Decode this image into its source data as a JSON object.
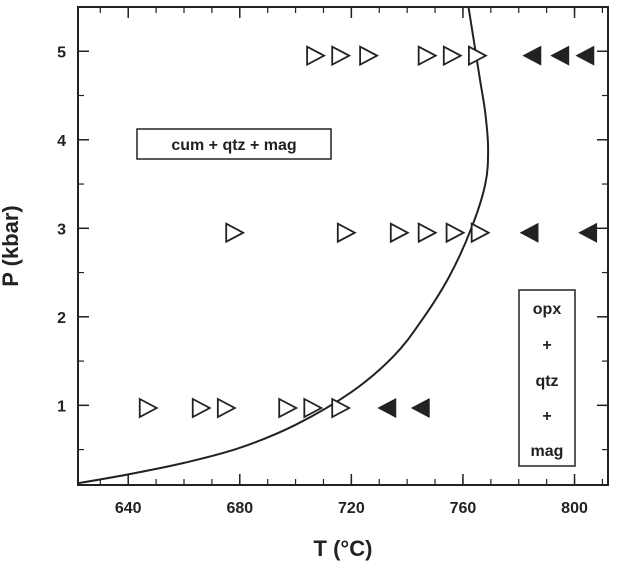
{
  "chart_data": {
    "type": "scatter",
    "title": "",
    "xlabel": "T (°C)",
    "ylabel": "P (kbar)",
    "xlim": [
      622,
      812
    ],
    "ylim": [
      0.1,
      5.5
    ],
    "x_ticks": [
      640,
      680,
      720,
      760,
      800
    ],
    "y_ticks": [
      1,
      2,
      3,
      4,
      5
    ],
    "x_minor_step": 10,
    "y_minor_step": 0.5,
    "grid": false,
    "series": [
      {
        "marker": "open-triangle-right",
        "color": "#222222",
        "points": [
          {
            "x": 707,
            "y": 4.95
          },
          {
            "x": 716,
            "y": 4.95
          },
          {
            "x": 726,
            "y": 4.95
          },
          {
            "x": 747,
            "y": 4.95
          },
          {
            "x": 756,
            "y": 4.95
          },
          {
            "x": 765,
            "y": 4.95
          },
          {
            "x": 678,
            "y": 2.95
          },
          {
            "x": 718,
            "y": 2.95
          },
          {
            "x": 737,
            "y": 2.95
          },
          {
            "x": 747,
            "y": 2.95
          },
          {
            "x": 757,
            "y": 2.95
          },
          {
            "x": 766,
            "y": 2.95
          },
          {
            "x": 647,
            "y": 0.97
          },
          {
            "x": 666,
            "y": 0.97
          },
          {
            "x": 675,
            "y": 0.97
          },
          {
            "x": 697,
            "y": 0.97
          },
          {
            "x": 706,
            "y": 0.97
          },
          {
            "x": 716,
            "y": 0.97
          }
        ]
      },
      {
        "marker": "filled-triangle-left",
        "color": "#222222",
        "points": [
          {
            "x": 785,
            "y": 4.95
          },
          {
            "x": 795,
            "y": 4.95
          },
          {
            "x": 804,
            "y": 4.95
          },
          {
            "x": 784,
            "y": 2.95
          },
          {
            "x": 805,
            "y": 2.95
          },
          {
            "x": 733,
            "y": 0.97
          },
          {
            "x": 745,
            "y": 0.97
          }
        ]
      }
    ],
    "boundary_curve": [
      {
        "x": 622,
        "y": 0.12
      },
      {
        "x": 640,
        "y": 0.22
      },
      {
        "x": 660,
        "y": 0.35
      },
      {
        "x": 680,
        "y": 0.52
      },
      {
        "x": 700,
        "y": 0.78
      },
      {
        "x": 720,
        "y": 1.15
      },
      {
        "x": 735,
        "y": 1.55
      },
      {
        "x": 745,
        "y": 1.95
      },
      {
        "x": 755,
        "y": 2.45
      },
      {
        "x": 763,
        "y": 3.0
      },
      {
        "x": 768,
        "y": 3.5
      },
      {
        "x": 769,
        "y": 3.9
      },
      {
        "x": 768,
        "y": 4.3
      },
      {
        "x": 766,
        "y": 4.7
      },
      {
        "x": 764,
        "y": 5.1
      },
      {
        "x": 762,
        "y": 5.5
      }
    ],
    "annotations": [
      {
        "lines": [
          "cum + qtz + mag"
        ]
      },
      {
        "lines": [
          "opx",
          "+",
          "qtz",
          "+",
          "mag"
        ]
      }
    ]
  }
}
